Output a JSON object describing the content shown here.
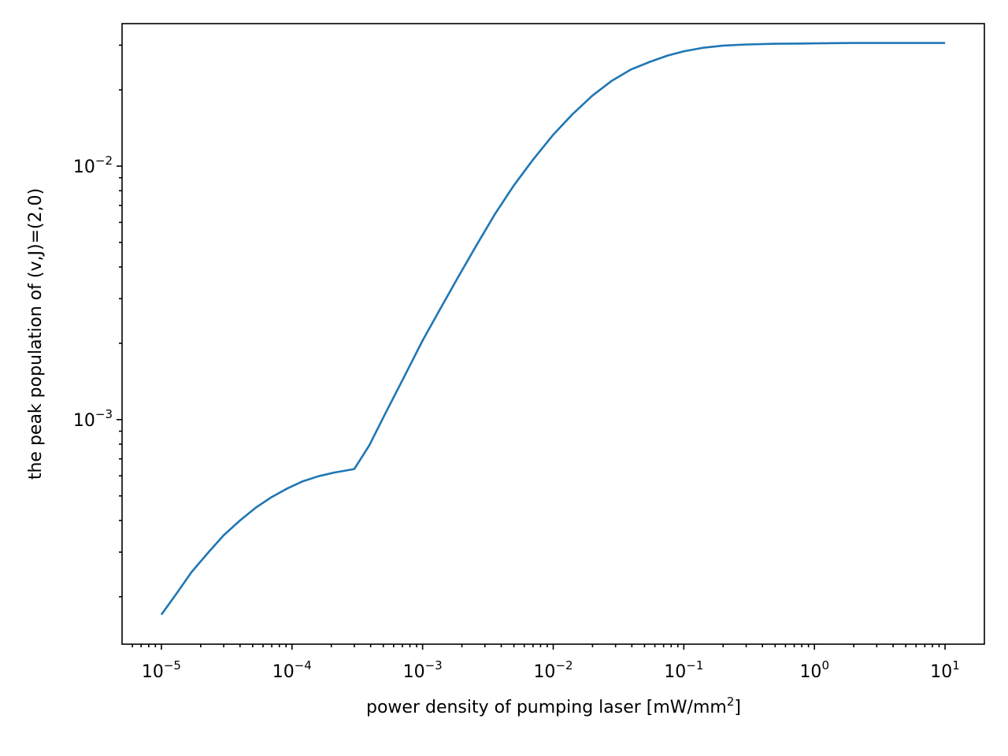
{
  "chart_data": {
    "type": "line",
    "title": "",
    "xlabel": "power density of pumping laser [mW/mm",
    "xlabel_sup": "2",
    "xlabel_close": "]",
    "ylabel": "the peak population of (v,J)=(2,0)",
    "xscale": "log",
    "yscale": "log",
    "xlim": [
      5e-06,
      20
    ],
    "ylim": [
      0.00013,
      0.0365
    ],
    "grid": false,
    "legend": "none",
    "x_ticks": [
      {
        "value": 1e-05,
        "base": "10",
        "exp": "−5"
      },
      {
        "value": 0.0001,
        "base": "10",
        "exp": "−4"
      },
      {
        "value": 0.001,
        "base": "10",
        "exp": "−3"
      },
      {
        "value": 0.01,
        "base": "10",
        "exp": "−2"
      },
      {
        "value": 0.1,
        "base": "10",
        "exp": "−1"
      },
      {
        "value": 1,
        "base": "10",
        "exp": "0"
      },
      {
        "value": 10,
        "base": "10",
        "exp": "1"
      }
    ],
    "y_ticks": [
      {
        "value": 0.001,
        "base": "10",
        "exp": "−3"
      },
      {
        "value": 0.01,
        "base": "10",
        "exp": "−2"
      }
    ],
    "series": [
      {
        "color": "#1f77b4",
        "x": [
          1e-05,
          1.3e-05,
          1.7e-05,
          2.3e-05,
          3e-05,
          4e-05,
          5.3e-05,
          7e-05,
          9.2e-05,
          0.00012,
          0.00016,
          0.00021,
          0.0003,
          0.00039,
          0.00052,
          0.0007,
          0.001,
          0.0014,
          0.0019,
          0.0026,
          0.0036,
          0.005,
          0.007,
          0.01,
          0.014,
          0.02,
          0.028,
          0.039,
          0.055,
          0.075,
          0.1,
          0.14,
          0.2,
          0.3,
          0.5,
          1.0,
          2.0,
          5.0,
          10.0
        ],
        "y": [
          0.00017,
          0.000205,
          0.00025,
          0.0003,
          0.00035,
          0.0004,
          0.00045,
          0.000495,
          0.000535,
          0.00057,
          0.000598,
          0.000618,
          0.000638,
          0.00079,
          0.00106,
          0.00143,
          0.00205,
          0.0028,
          0.0037,
          0.0049,
          0.0065,
          0.0084,
          0.0106,
          0.0133,
          0.016,
          0.019,
          0.0217,
          0.024,
          0.0258,
          0.0273,
          0.0284,
          0.0293,
          0.0299,
          0.0302,
          0.0304,
          0.0305,
          0.0306,
          0.0306,
          0.0306
        ]
      }
    ]
  }
}
